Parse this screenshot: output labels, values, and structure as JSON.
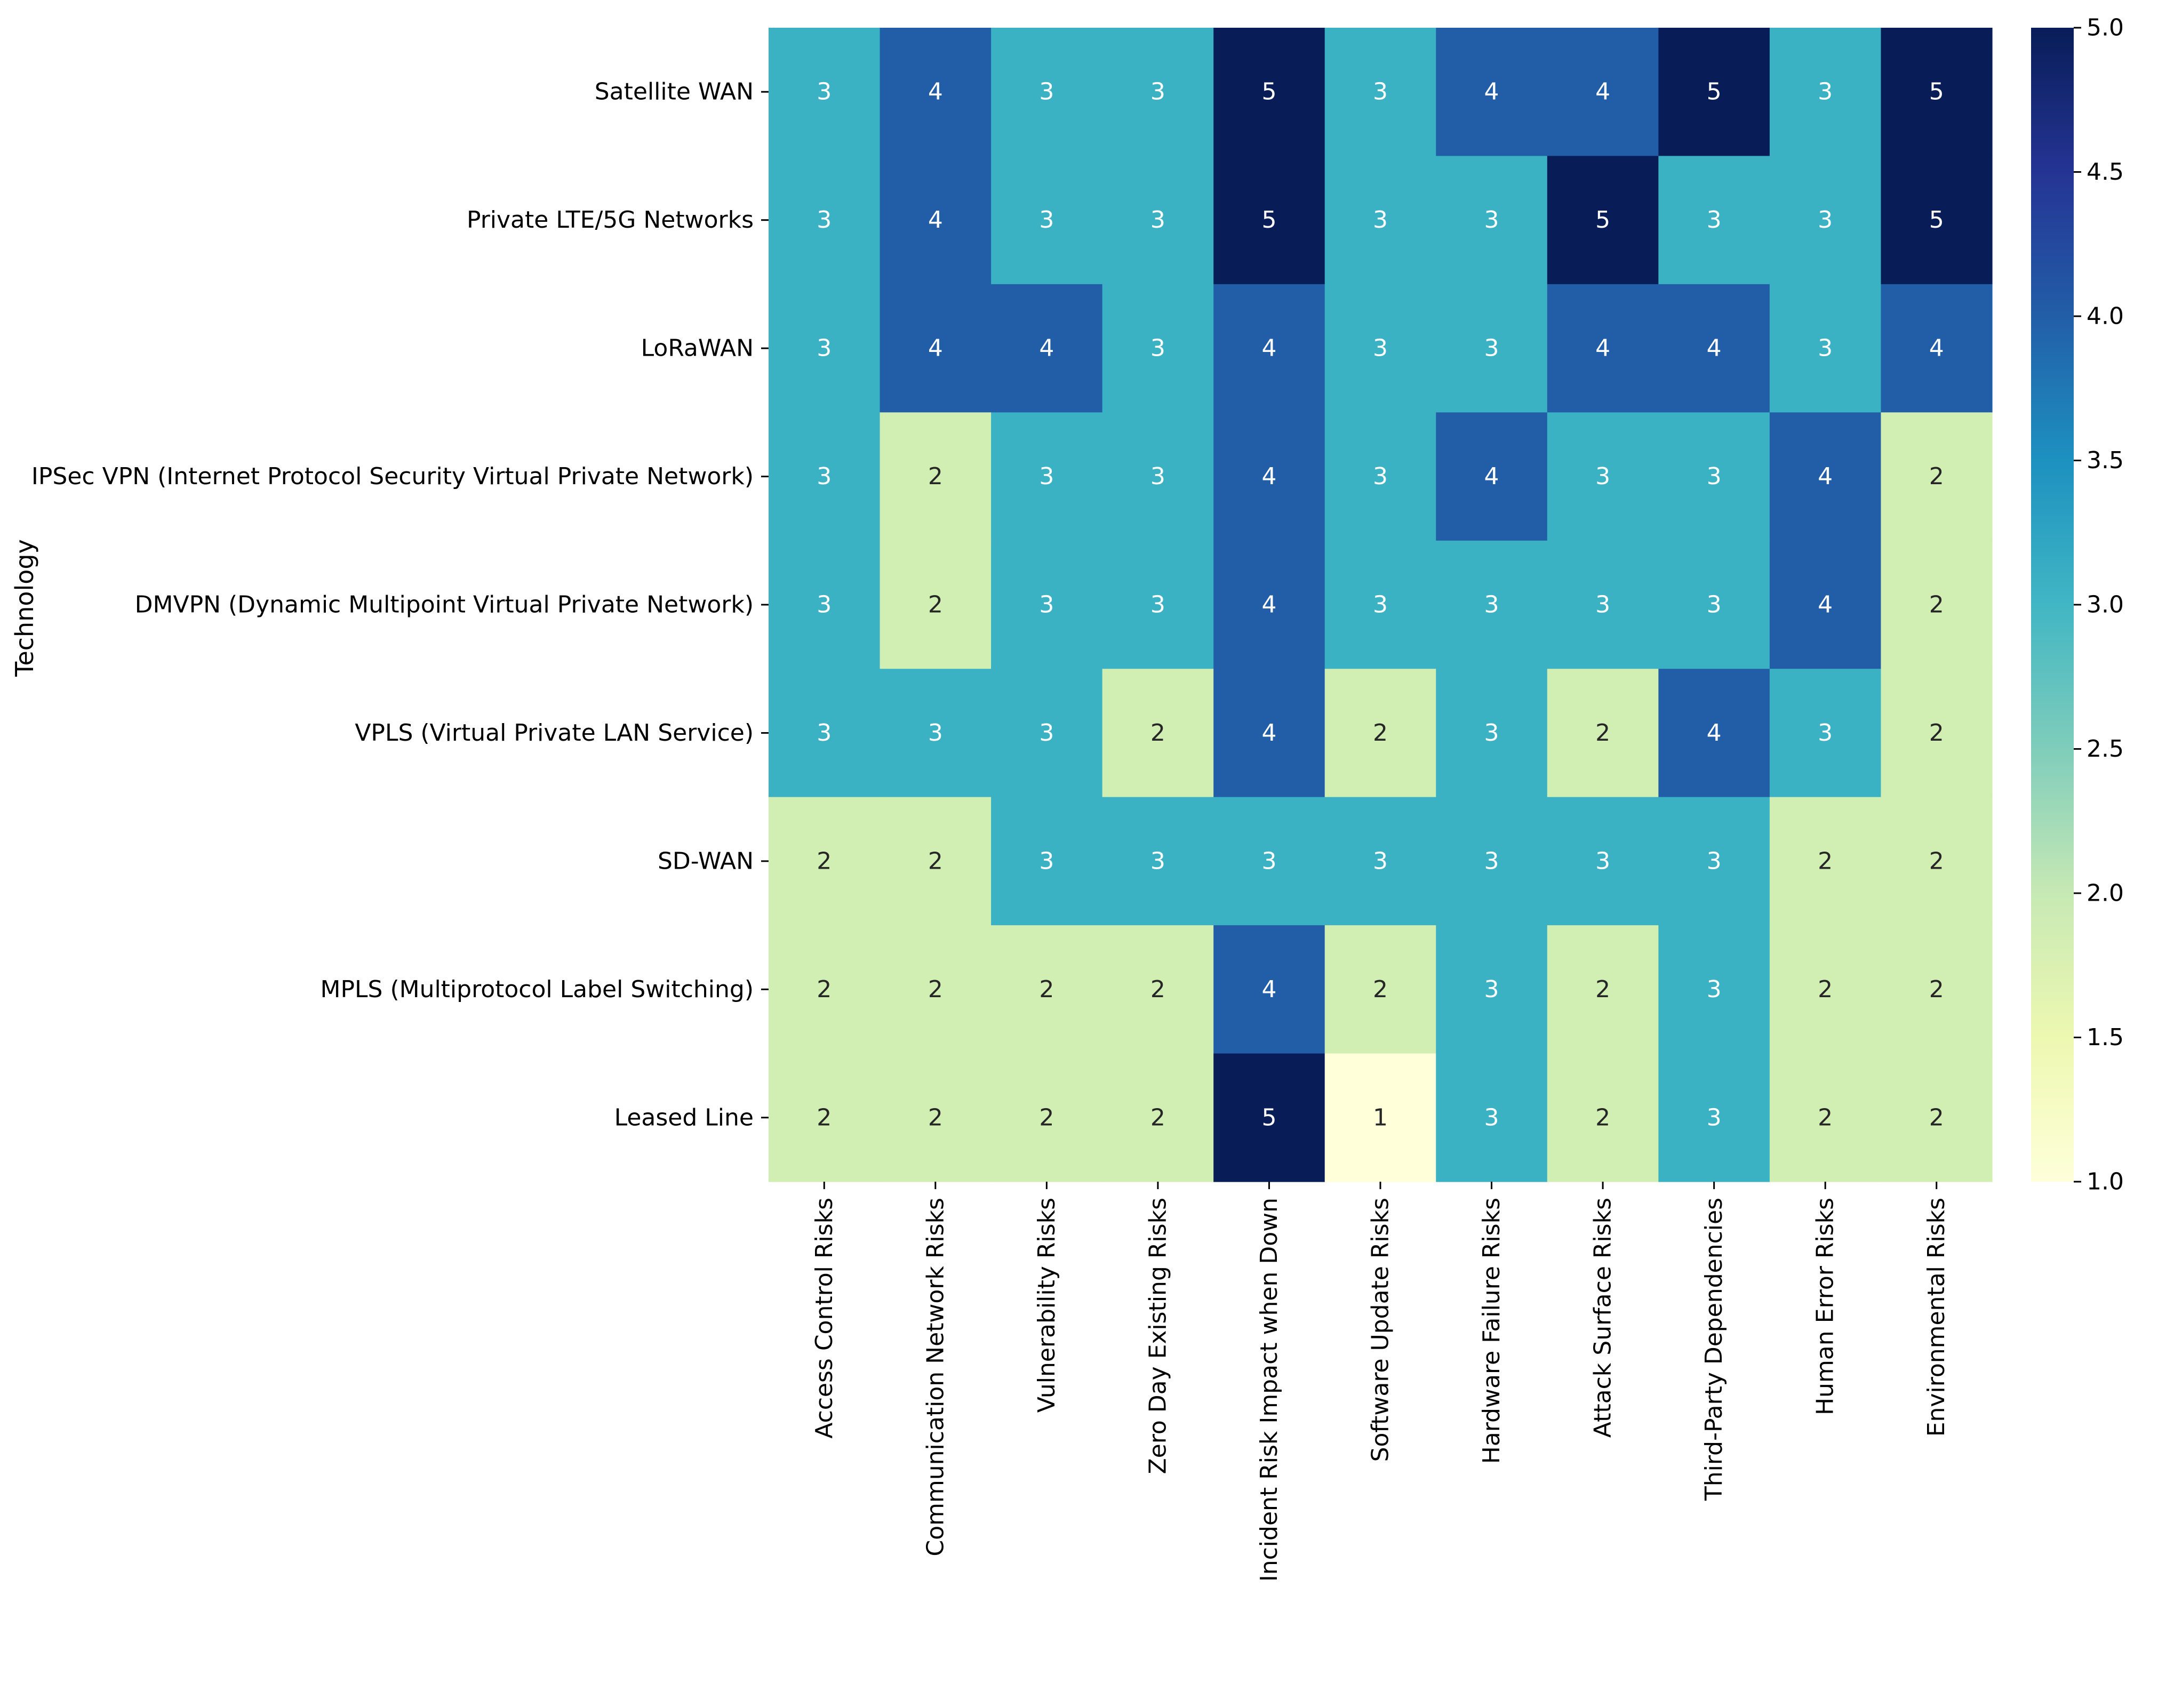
{
  "chart_data": {
    "type": "heatmap",
    "title": "",
    "ylabel": "Technology",
    "xlabel": "",
    "rows": [
      "Satellite WAN",
      "Private LTE/5G Networks",
      "LoRaWAN",
      "IPSec VPN (Internet Protocol Security Virtual Private Network)",
      "DMVPN (Dynamic Multipoint Virtual Private Network)",
      "VPLS (Virtual Private LAN Service)",
      "SD-WAN",
      "MPLS (Multiprotocol Label Switching)",
      "Leased Line"
    ],
    "columns": [
      "Access Control Risks",
      "Communication Network Risks",
      "Vulnerability Risks",
      "Zero Day Existing Risks",
      "Incident Risk Impact when Down",
      "Software Update Risks",
      "Hardware Failure Risks",
      "Attack Surface Risks",
      "Third-Party Dependencies",
      "Human Error Risks",
      "Environmental Risks"
    ],
    "values": [
      [
        3,
        4,
        3,
        3,
        5,
        3,
        4,
        4,
        5,
        3,
        5
      ],
      [
        3,
        4,
        3,
        3,
        5,
        3,
        3,
        5,
        3,
        3,
        5
      ],
      [
        3,
        4,
        4,
        3,
        4,
        3,
        3,
        4,
        4,
        3,
        4
      ],
      [
        3,
        2,
        3,
        3,
        4,
        3,
        4,
        3,
        3,
        4,
        2
      ],
      [
        3,
        2,
        3,
        3,
        4,
        3,
        3,
        3,
        3,
        4,
        2
      ],
      [
        3,
        3,
        3,
        2,
        4,
        2,
        3,
        2,
        4,
        3,
        2
      ],
      [
        2,
        2,
        3,
        3,
        3,
        3,
        3,
        3,
        3,
        2,
        2
      ],
      [
        2,
        2,
        2,
        2,
        4,
        2,
        3,
        2,
        3,
        2,
        2
      ],
      [
        2,
        2,
        2,
        2,
        5,
        1,
        3,
        2,
        3,
        2,
        2
      ]
    ],
    "colorbar": {
      "range": [
        1.0,
        5.0
      ],
      "ticks": [
        "1.0",
        "1.5",
        "2.0",
        "2.5",
        "3.0",
        "3.5",
        "4.0",
        "4.5",
        "5.0"
      ],
      "colormap": "YlGnBu"
    },
    "colors": {
      "1": "#ffffd9",
      "2": "#d1eeb3",
      "3": "#3bb2c3",
      "4": "#225ea8",
      "5": "#081d58"
    },
    "annotation_text_light": "#ffffff",
    "annotation_text_dark": "#262626"
  }
}
